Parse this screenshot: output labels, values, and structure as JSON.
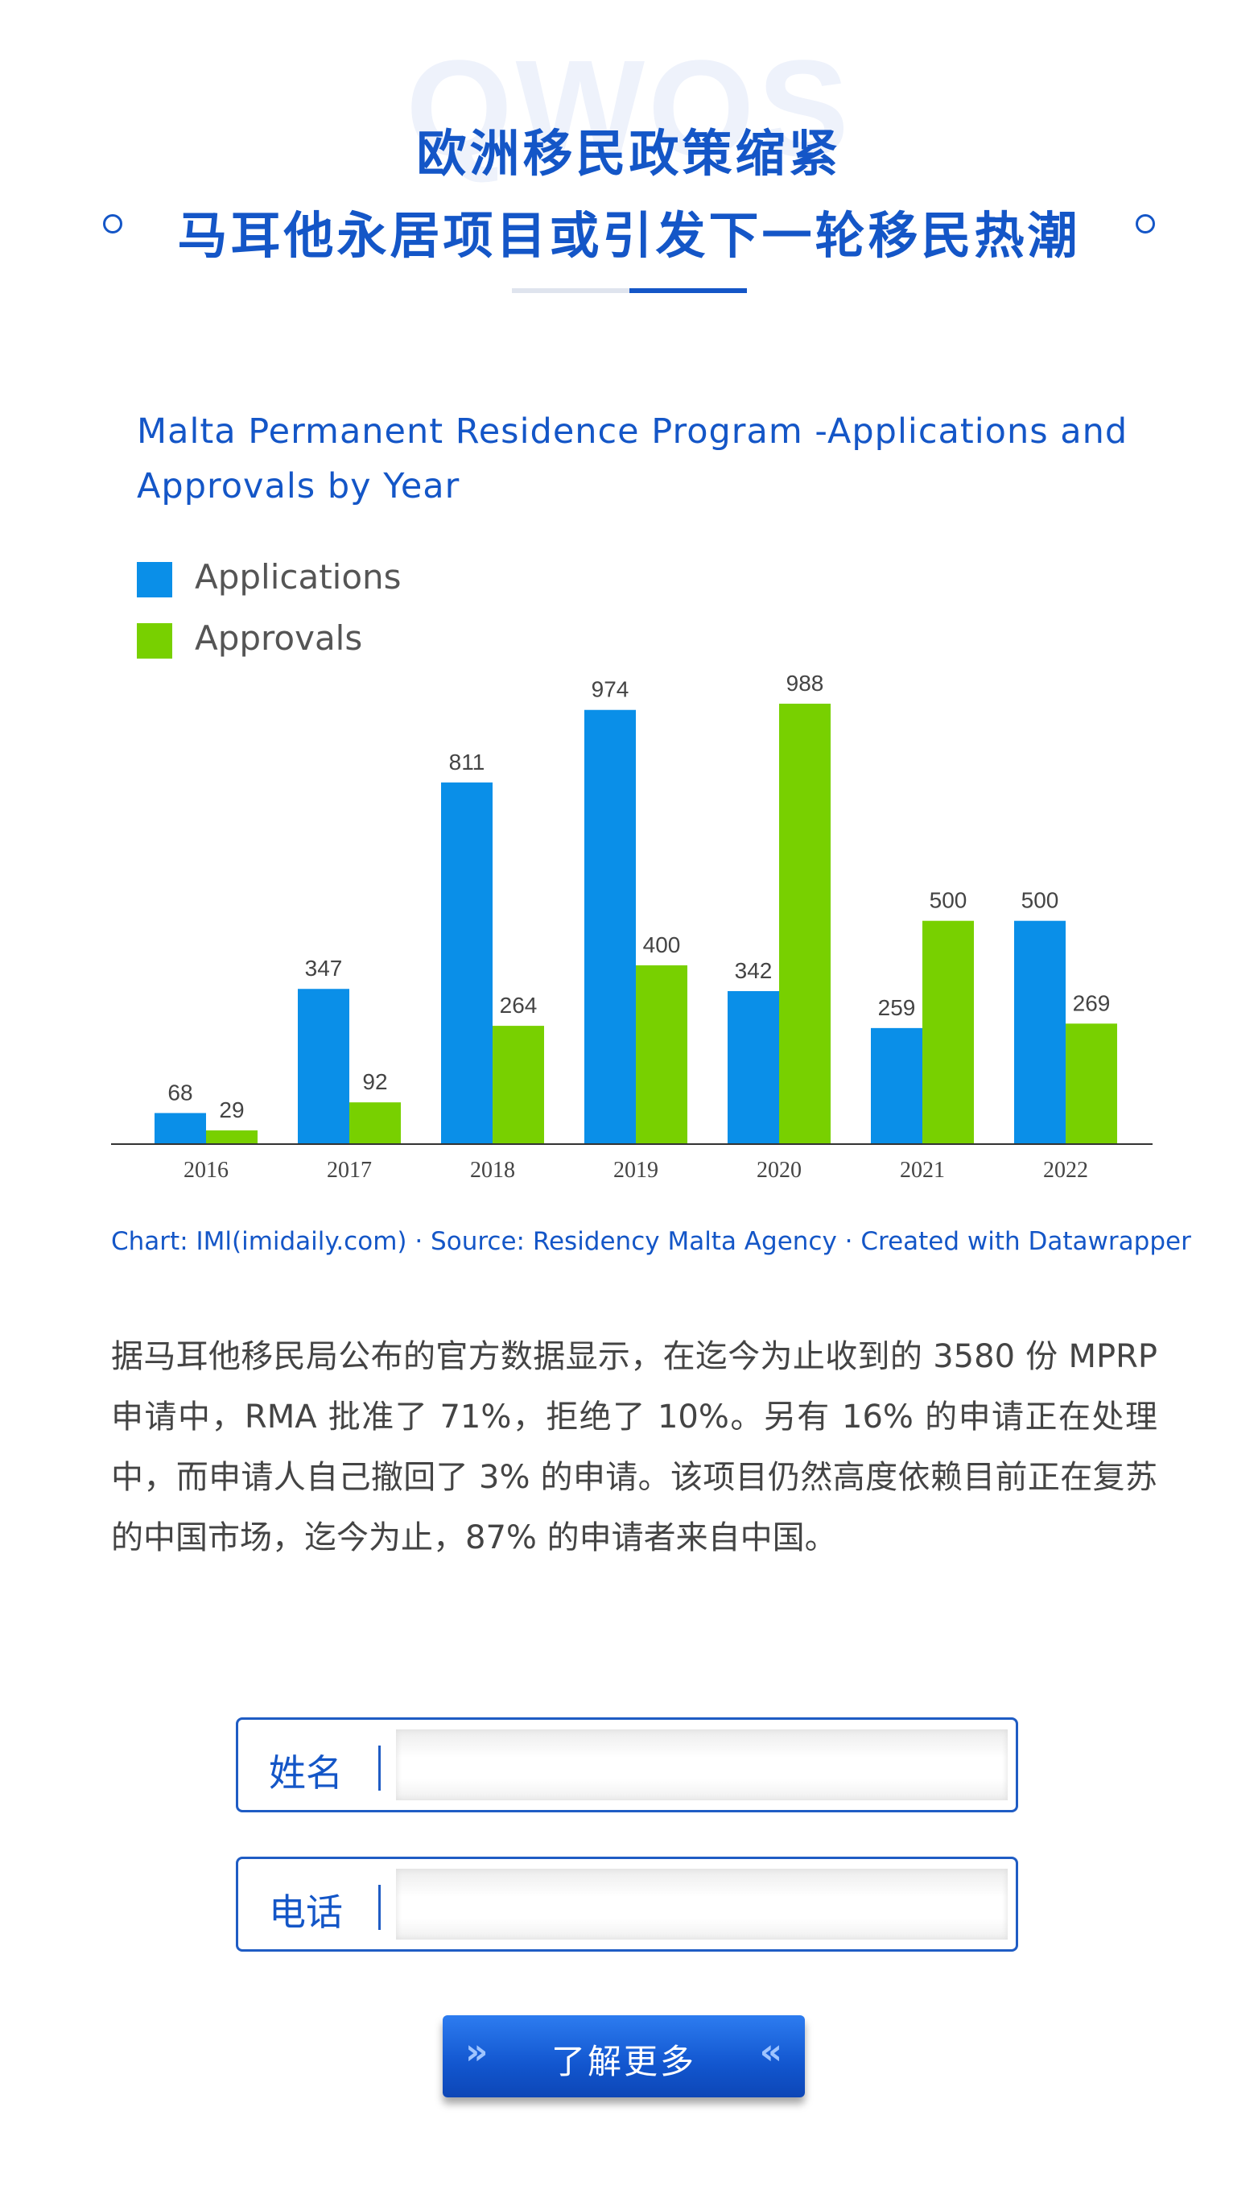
{
  "header": {
    "watermark": "QWOS",
    "title_line1": "欧洲移民政策缩紧",
    "title_line2": "马耳他永居项目或引发下一轮移民热潮"
  },
  "colors": {
    "brand_blue": "#1456c7",
    "applications": "#0a8fe8",
    "approvals": "#78d000"
  },
  "chart_data": {
    "type": "bar",
    "title": "Malta Permanent Residence Program -Applications and Approvals by Year",
    "categories": [
      "2016",
      "2017",
      "2018",
      "2019",
      "2020",
      "2021",
      "2022"
    ],
    "series": [
      {
        "name": "Applications",
        "values": [
          68,
          347,
          811,
          974,
          342,
          259,
          500
        ]
      },
      {
        "name": "Approvals",
        "values": [
          29,
          92,
          264,
          400,
          988,
          500,
          269
        ]
      }
    ],
    "ylim": [
      0,
      988
    ],
    "grid": false,
    "legend": "top-left"
  },
  "caption": "Chart: IMl(imidaily.com) · Source: Residency Malta Agency ·  Created with Datawrapper",
  "paragraph": "据马耳他移民局公布的官方数据显示，在迄今为止收到的 3580 份 MPRP 申请中，RMA 批准了 71%，拒绝了 10%。另有 16% 的申请正在处理中，而申请人自己撤回了 3% 的申请。该项目仍然高度依赖目前正在复苏的中国市场，迄今为止，87% 的申请者来自中国。",
  "form": {
    "name_label": "姓名",
    "name_value": "",
    "phone_label": "电话",
    "phone_value": ""
  },
  "cta": {
    "label": "了解更多",
    "chevron_left": "»",
    "chevron_right": "«"
  }
}
